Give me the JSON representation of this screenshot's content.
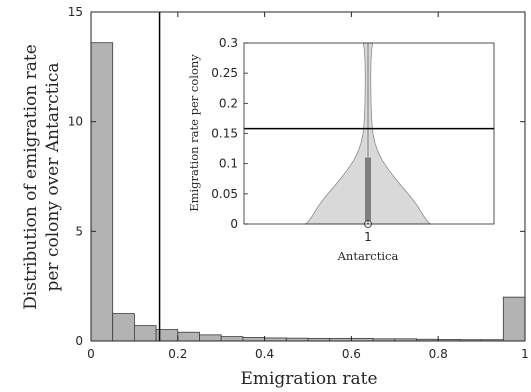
{
  "chart_data": [
    {
      "type": "bar",
      "subtype": "histogram",
      "xlabel": "Emigration rate",
      "ylabel_line1": "Distribution of emigration rate",
      "ylabel_line2": "per colony over Antarctica",
      "xlim": [
        0,
        1
      ],
      "ylim": [
        0,
        15
      ],
      "xticks": [
        "0",
        "0.2",
        "0.4",
        "0.6",
        "0.8",
        "1"
      ],
      "yticks": [
        "0",
        "5",
        "10",
        "15"
      ],
      "bin_edges": [
        0,
        0.05,
        0.1,
        0.15,
        0.2,
        0.25,
        0.3,
        0.35,
        0.4,
        0.45,
        0.5,
        0.55,
        0.6,
        0.65,
        0.7,
        0.75,
        0.8,
        0.85,
        0.9,
        0.95,
        1.0
      ],
      "values": [
        13.6,
        1.25,
        0.7,
        0.52,
        0.4,
        0.28,
        0.2,
        0.16,
        0.14,
        0.13,
        0.12,
        0.12,
        0.12,
        0.1,
        0.1,
        0.08,
        0.07,
        0.06,
        0.06,
        2.0
      ],
      "bar_color": "#b3b3b3",
      "bar_edge_color": "#3a3a3a",
      "vertical_line_x": 0.158,
      "grid": false
    },
    {
      "type": "violin",
      "xlabel": "Antarctica",
      "ylabel": "Emigration rate per colony",
      "xticks": [
        "1"
      ],
      "ylim": [
        0,
        0.3
      ],
      "yticks": [
        "0",
        "0.05",
        "0.1",
        "0.15",
        "0.2",
        "0.25",
        "0.3"
      ],
      "density_profile": [
        {
          "y": 0.0,
          "half_width": 0.82
        },
        {
          "y": 0.005,
          "half_width": 0.78
        },
        {
          "y": 0.012,
          "half_width": 0.74
        },
        {
          "y": 0.02,
          "half_width": 0.7
        },
        {
          "y": 0.03,
          "half_width": 0.65
        },
        {
          "y": 0.045,
          "half_width": 0.56
        },
        {
          "y": 0.06,
          "half_width": 0.46
        },
        {
          "y": 0.075,
          "half_width": 0.36
        },
        {
          "y": 0.09,
          "half_width": 0.27
        },
        {
          "y": 0.105,
          "half_width": 0.19
        },
        {
          "y": 0.12,
          "half_width": 0.13
        },
        {
          "y": 0.135,
          "half_width": 0.09
        },
        {
          "y": 0.15,
          "half_width": 0.065
        },
        {
          "y": 0.17,
          "half_width": 0.05
        },
        {
          "y": 0.2,
          "half_width": 0.04
        },
        {
          "y": 0.24,
          "half_width": 0.035
        },
        {
          "y": 0.27,
          "half_width": 0.04
        },
        {
          "y": 0.29,
          "half_width": 0.05
        },
        {
          "y": 0.3,
          "half_width": 0.06
        }
      ],
      "whisker_top": 0.3,
      "q1": 0.0,
      "q3": 0.11,
      "median": 0.0,
      "horizontal_line_y": 0.158,
      "fill_color": "#d9d9d9",
      "box_color": "#7f7f7f"
    }
  ],
  "colors": {
    "axis": "#262626",
    "reference_line": "#000000",
    "median_marker": "#ffffff"
  }
}
